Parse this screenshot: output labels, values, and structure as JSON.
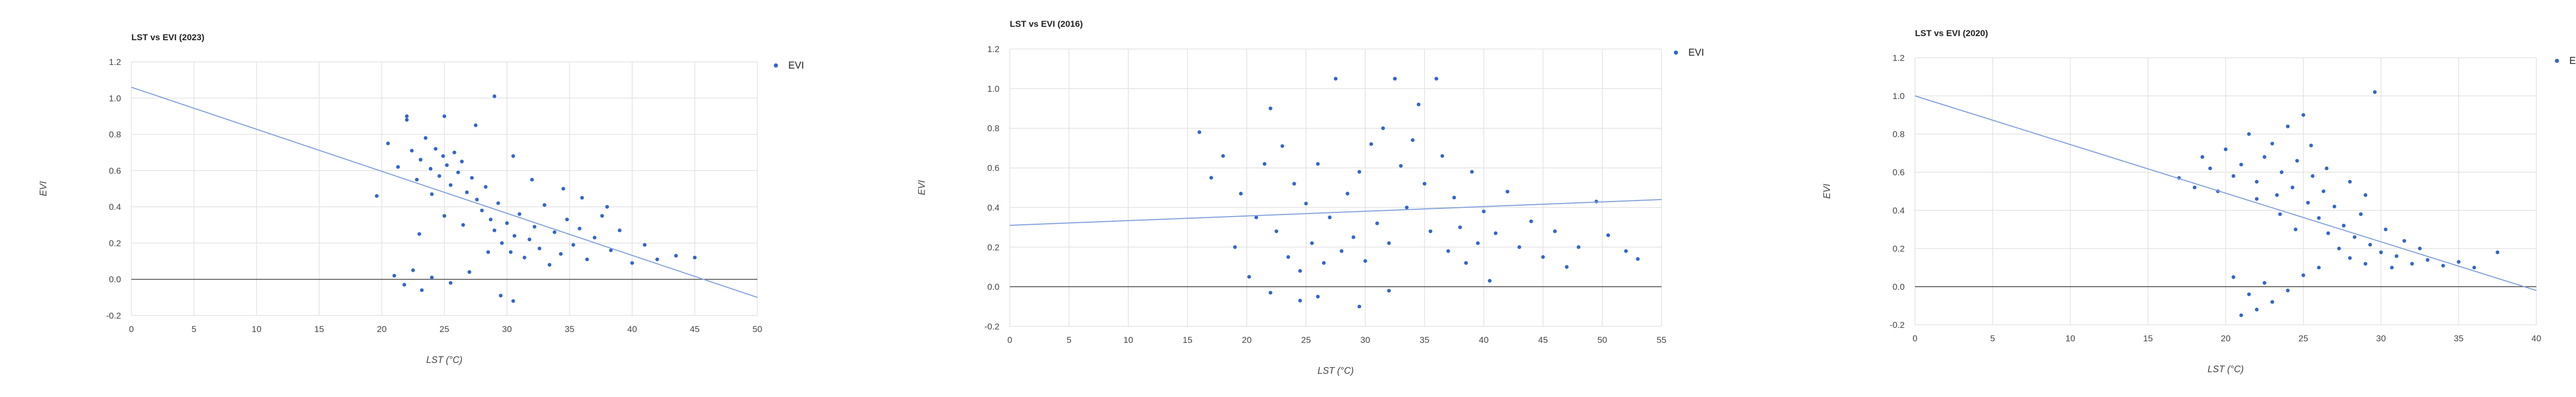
{
  "chart_data": [
    {
      "type": "scatter",
      "title": "LST vs EVI (2023)",
      "xlabel": "LST (°C)",
      "ylabel": "EVI",
      "xlim": [
        0,
        50
      ],
      "ylim": [
        -0.2,
        1.2
      ],
      "xticks": [
        "0",
        "5",
        "10",
        "15",
        "20",
        "25",
        "30",
        "35",
        "40",
        "45",
        "50"
      ],
      "yticks": [
        "-0.2",
        "0.0",
        "0.2",
        "0.4",
        "0.6",
        "0.8",
        "1.0",
        "1.2"
      ],
      "legend": [
        "EVI"
      ],
      "legend_position": "right",
      "grid": true,
      "series": [
        {
          "name": "EVI",
          "color": "#3366cc",
          "points": [
            [
              19.6,
              0.46
            ],
            [
              20.5,
              0.75
            ],
            [
              21.3,
              0.62
            ],
            [
              22.0,
              0.88
            ],
            [
              22.4,
              0.71
            ],
            [
              22.8,
              0.55
            ],
            [
              23.1,
              0.66
            ],
            [
              23.5,
              0.78
            ],
            [
              23.9,
              0.61
            ],
            [
              24.3,
              0.72
            ],
            [
              24.6,
              0.57
            ],
            [
              24.9,
              0.68
            ],
            [
              25.2,
              0.63
            ],
            [
              25.5,
              0.52
            ],
            [
              25.8,
              0.7
            ],
            [
              26.1,
              0.59
            ],
            [
              26.4,
              0.65
            ],
            [
              26.8,
              0.48
            ],
            [
              27.2,
              0.56
            ],
            [
              27.6,
              0.44
            ],
            [
              28.0,
              0.38
            ],
            [
              28.3,
              0.51
            ],
            [
              28.7,
              0.33
            ],
            [
              29.0,
              0.27
            ],
            [
              29.3,
              0.42
            ],
            [
              29.6,
              0.2
            ],
            [
              30.0,
              0.31
            ],
            [
              30.3,
              0.15
            ],
            [
              30.6,
              0.24
            ],
            [
              31.0,
              0.36
            ],
            [
              31.4,
              0.12
            ],
            [
              31.8,
              0.22
            ],
            [
              32.2,
              0.29
            ],
            [
              32.6,
              0.17
            ],
            [
              33.0,
              0.41
            ],
            [
              33.4,
              0.08
            ],
            [
              33.8,
              0.26
            ],
            [
              34.3,
              0.14
            ],
            [
              34.8,
              0.33
            ],
            [
              35.3,
              0.19
            ],
            [
              35.8,
              0.28
            ],
            [
              36.4,
              0.11
            ],
            [
              37.0,
              0.23
            ],
            [
              37.6,
              0.35
            ],
            [
              38.3,
              0.16
            ],
            [
              39.0,
              0.27
            ],
            [
              40.0,
              0.09
            ],
            [
              41.0,
              0.19
            ],
            [
              42.0,
              0.11
            ],
            [
              43.5,
              0.13
            ],
            [
              45.0,
              0.12
            ],
            [
              21.0,
              0.02
            ],
            [
              21.8,
              -0.03
            ],
            [
              22.5,
              0.05
            ],
            [
              23.2,
              -0.06
            ],
            [
              24.0,
              0.01
            ],
            [
              25.5,
              -0.02
            ],
            [
              27.0,
              0.04
            ],
            [
              29.5,
              -0.09
            ],
            [
              30.5,
              -0.12
            ],
            [
              28.5,
              0.15
            ],
            [
              26.5,
              0.3
            ],
            [
              25.0,
              0.35
            ],
            [
              24.0,
              0.47
            ],
            [
              23.0,
              0.25
            ],
            [
              22.0,
              0.9
            ],
            [
              25.0,
              0.9
            ],
            [
              29.0,
              1.01
            ],
            [
              27.5,
              0.85
            ],
            [
              30.5,
              0.68
            ],
            [
              32.0,
              0.55
            ],
            [
              34.5,
              0.5
            ],
            [
              36.0,
              0.45
            ],
            [
              38.0,
              0.4
            ]
          ]
        }
      ],
      "trendline": {
        "x": [
          0,
          50
        ],
        "y": [
          1.06,
          -0.1
        ]
      }
    },
    {
      "type": "scatter",
      "title": "LST vs EVI (2016)",
      "xlabel": "LST (°C)",
      "ylabel": "EVI",
      "xlim": [
        0,
        55
      ],
      "ylim": [
        -0.2,
        1.2
      ],
      "xticks": [
        "0",
        "5",
        "10",
        "15",
        "20",
        "25",
        "30",
        "35",
        "40",
        "45",
        "50",
        "55"
      ],
      "yticks": [
        "-0.2",
        "0.0",
        "0.2",
        "0.4",
        "0.6",
        "0.8",
        "1.0",
        "1.2"
      ],
      "legend": [
        "EVI"
      ],
      "legend_position": "right",
      "grid": true,
      "series": [
        {
          "name": "EVI",
          "color": "#3366cc",
          "points": [
            [
              16.0,
              0.78
            ],
            [
              17.0,
              0.55
            ],
            [
              18.0,
              0.66
            ],
            [
              19.0,
              0.2
            ],
            [
              19.5,
              0.47
            ],
            [
              20.2,
              0.05
            ],
            [
              20.8,
              0.35
            ],
            [
              21.5,
              0.62
            ],
            [
              22.0,
              0.9
            ],
            [
              22.5,
              0.28
            ],
            [
              23.0,
              0.71
            ],
            [
              23.5,
              0.15
            ],
            [
              24.0,
              0.52
            ],
            [
              24.5,
              0.08
            ],
            [
              25.0,
              0.42
            ],
            [
              25.5,
              0.22
            ],
            [
              26.0,
              0.62
            ],
            [
              26.5,
              0.12
            ],
            [
              27.0,
              0.35
            ],
            [
              27.5,
              1.05
            ],
            [
              28.0,
              0.18
            ],
            [
              28.5,
              0.47
            ],
            [
              29.0,
              0.25
            ],
            [
              29.5,
              0.58
            ],
            [
              30.0,
              0.13
            ],
            [
              30.5,
              0.72
            ],
            [
              31.0,
              0.32
            ],
            [
              31.5,
              0.8
            ],
            [
              32.0,
              0.22
            ],
            [
              32.5,
              1.05
            ],
            [
              33.0,
              0.61
            ],
            [
              33.5,
              0.4
            ],
            [
              34.0,
              0.74
            ],
            [
              34.5,
              0.92
            ],
            [
              35.0,
              0.52
            ],
            [
              35.5,
              0.28
            ],
            [
              36.0,
              1.05
            ],
            [
              36.5,
              0.66
            ],
            [
              37.0,
              0.18
            ],
            [
              37.5,
              0.45
            ],
            [
              38.0,
              0.3
            ],
            [
              38.5,
              0.12
            ],
            [
              39.0,
              0.58
            ],
            [
              39.5,
              0.22
            ],
            [
              40.0,
              0.38
            ],
            [
              40.5,
              0.03
            ],
            [
              41.0,
              0.27
            ],
            [
              42.0,
              0.48
            ],
            [
              43.0,
              0.2
            ],
            [
              44.0,
              0.33
            ],
            [
              45.0,
              0.15
            ],
            [
              46.0,
              0.28
            ],
            [
              47.0,
              0.1
            ],
            [
              48.0,
              0.2
            ],
            [
              49.5,
              0.43
            ],
            [
              50.5,
              0.26
            ],
            [
              52.0,
              0.18
            ],
            [
              53.0,
              0.14
            ],
            [
              26.0,
              -0.05
            ],
            [
              29.5,
              -0.1
            ],
            [
              32.0,
              -0.02
            ],
            [
              24.5,
              -0.07
            ],
            [
              22.0,
              -0.03
            ]
          ]
        }
      ],
      "trendline": {
        "x": [
          0,
          55
        ],
        "y": [
          0.31,
          0.44
        ]
      }
    },
    {
      "type": "scatter",
      "title": "LST vs EVI (2020)",
      "xlabel": "LST (°C)",
      "ylabel": "EVI",
      "xlim": [
        0,
        40
      ],
      "ylim": [
        -0.2,
        1.2
      ],
      "xticks": [
        "0",
        "5",
        "10",
        "15",
        "20",
        "25",
        "30",
        "35",
        "40"
      ],
      "yticks": [
        "-0.2",
        "0.0",
        "0.2",
        "0.4",
        "0.6",
        "0.8",
        "1.0",
        "1.2"
      ],
      "legend": [
        "EVI"
      ],
      "legend_position": "right",
      "grid": true,
      "series": [
        {
          "name": "EVI",
          "color": "#3366cc",
          "points": [
            [
              17.0,
              0.57
            ],
            [
              18.0,
              0.52
            ],
            [
              18.5,
              0.68
            ],
            [
              19.0,
              0.62
            ],
            [
              19.5,
              0.5
            ],
            [
              20.0,
              0.72
            ],
            [
              20.5,
              0.58
            ],
            [
              21.0,
              0.64
            ],
            [
              21.5,
              0.8
            ],
            [
              22.0,
              0.55
            ],
            [
              22.5,
              0.68
            ],
            [
              23.0,
              0.75
            ],
            [
              23.3,
              0.48
            ],
            [
              23.6,
              0.6
            ],
            [
              24.0,
              0.84
            ],
            [
              24.3,
              0.52
            ],
            [
              24.6,
              0.66
            ],
            [
              25.0,
              0.9
            ],
            [
              25.3,
              0.44
            ],
            [
              25.6,
              0.58
            ],
            [
              26.0,
              0.36
            ],
            [
              26.3,
              0.5
            ],
            [
              26.6,
              0.28
            ],
            [
              27.0,
              0.42
            ],
            [
              27.3,
              0.2
            ],
            [
              27.6,
              0.32
            ],
            [
              28.0,
              0.15
            ],
            [
              28.3,
              0.26
            ],
            [
              28.7,
              0.38
            ],
            [
              29.0,
              0.12
            ],
            [
              29.3,
              0.22
            ],
            [
              29.6,
              1.02
            ],
            [
              30.0,
              0.18
            ],
            [
              30.3,
              0.3
            ],
            [
              30.7,
              0.1
            ],
            [
              31.0,
              0.16
            ],
            [
              31.5,
              0.24
            ],
            [
              32.0,
              0.12
            ],
            [
              32.5,
              0.2
            ],
            [
              33.0,
              0.14
            ],
            [
              34.0,
              0.11
            ],
            [
              35.0,
              0.13
            ],
            [
              36.0,
              0.1
            ],
            [
              37.5,
              0.18
            ],
            [
              20.5,
              0.05
            ],
            [
              21.5,
              -0.04
            ],
            [
              22.5,
              0.02
            ],
            [
              23.0,
              -0.08
            ],
            [
              24.0,
              -0.02
            ],
            [
              25.0,
              0.06
            ],
            [
              21.0,
              -0.15
            ],
            [
              22.0,
              -0.12
            ],
            [
              26.0,
              0.1
            ],
            [
              24.5,
              0.3
            ],
            [
              23.5,
              0.38
            ],
            [
              22.0,
              0.46
            ],
            [
              25.5,
              0.74
            ],
            [
              26.5,
              0.62
            ],
            [
              28.0,
              0.55
            ],
            [
              29.0,
              0.48
            ]
          ]
        }
      ],
      "trendline": {
        "x": [
          0,
          40
        ],
        "y": [
          1.0,
          -0.02
        ]
      }
    }
  ]
}
